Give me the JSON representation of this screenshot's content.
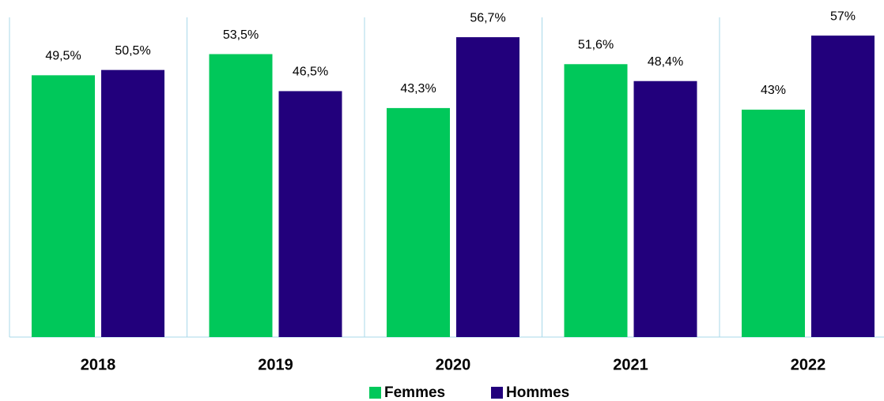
{
  "chart_data": {
    "type": "bar",
    "categories": [
      "2018",
      "2019",
      "2020",
      "2021",
      "2022"
    ],
    "series": [
      {
        "name": "Femmes",
        "color": "#00c85a",
        "values": [
          49.5,
          53.5,
          43.3,
          51.6,
          43
        ],
        "value_labels": [
          "49,5%",
          "53,5%",
          "43,3%",
          "51,6%",
          "43%"
        ]
      },
      {
        "name": "Hommes",
        "color": "#22007c",
        "values": [
          50.5,
          46.5,
          56.7,
          48.4,
          57
        ],
        "value_labels": [
          "50,5%",
          "46,5%",
          "56,7%",
          "48,4%",
          "57%"
        ]
      }
    ],
    "legend": "bottom"
  }
}
